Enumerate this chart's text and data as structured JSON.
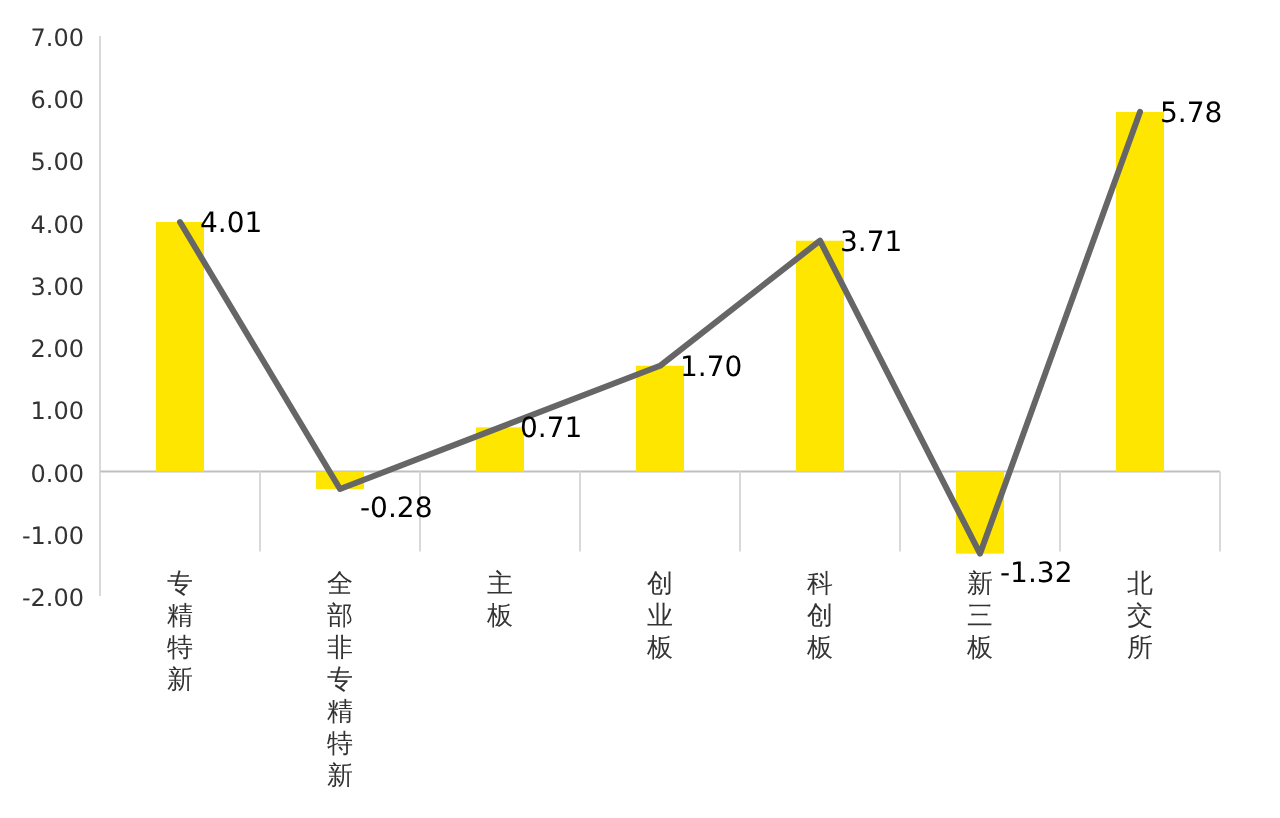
{
  "chart_data": {
    "type": "bar",
    "categories": [
      "专精特新",
      "全部非专精特新",
      "主板",
      "创业板",
      "科创板",
      "新三板",
      "北交所"
    ],
    "series": [
      {
        "color": "#ffe600",
        "values": [
          4.01,
          -0.28,
          0.71,
          1.7,
          3.71,
          -1.32,
          5.78
        ]
      },
      {
        "type": "line",
        "color": "#666666",
        "values": [
          4.01,
          -0.28,
          0.71,
          1.7,
          3.71,
          -1.32,
          5.78
        ],
        "value_labels": [
          "4.01",
          "-0.28",
          "0.71",
          "1.70",
          "3.71",
          "-1.32",
          "5.78"
        ]
      }
    ],
    "ylim": [
      -2,
      7
    ],
    "yticks": [
      {
        "value": 7,
        "label": "7.00"
      },
      {
        "value": 6,
        "label": "6.00"
      },
      {
        "value": 5,
        "label": "5.00"
      },
      {
        "value": 4,
        "label": "4.00"
      },
      {
        "value": 3,
        "label": "3.00"
      },
      {
        "value": 2,
        "label": "2.00"
      },
      {
        "value": 1,
        "label": "1.00"
      },
      {
        "value": 0,
        "label": "0.00"
      },
      {
        "value": -1,
        "label": "-1.00"
      },
      {
        "value": -2,
        "label": "-2.00"
      }
    ]
  }
}
